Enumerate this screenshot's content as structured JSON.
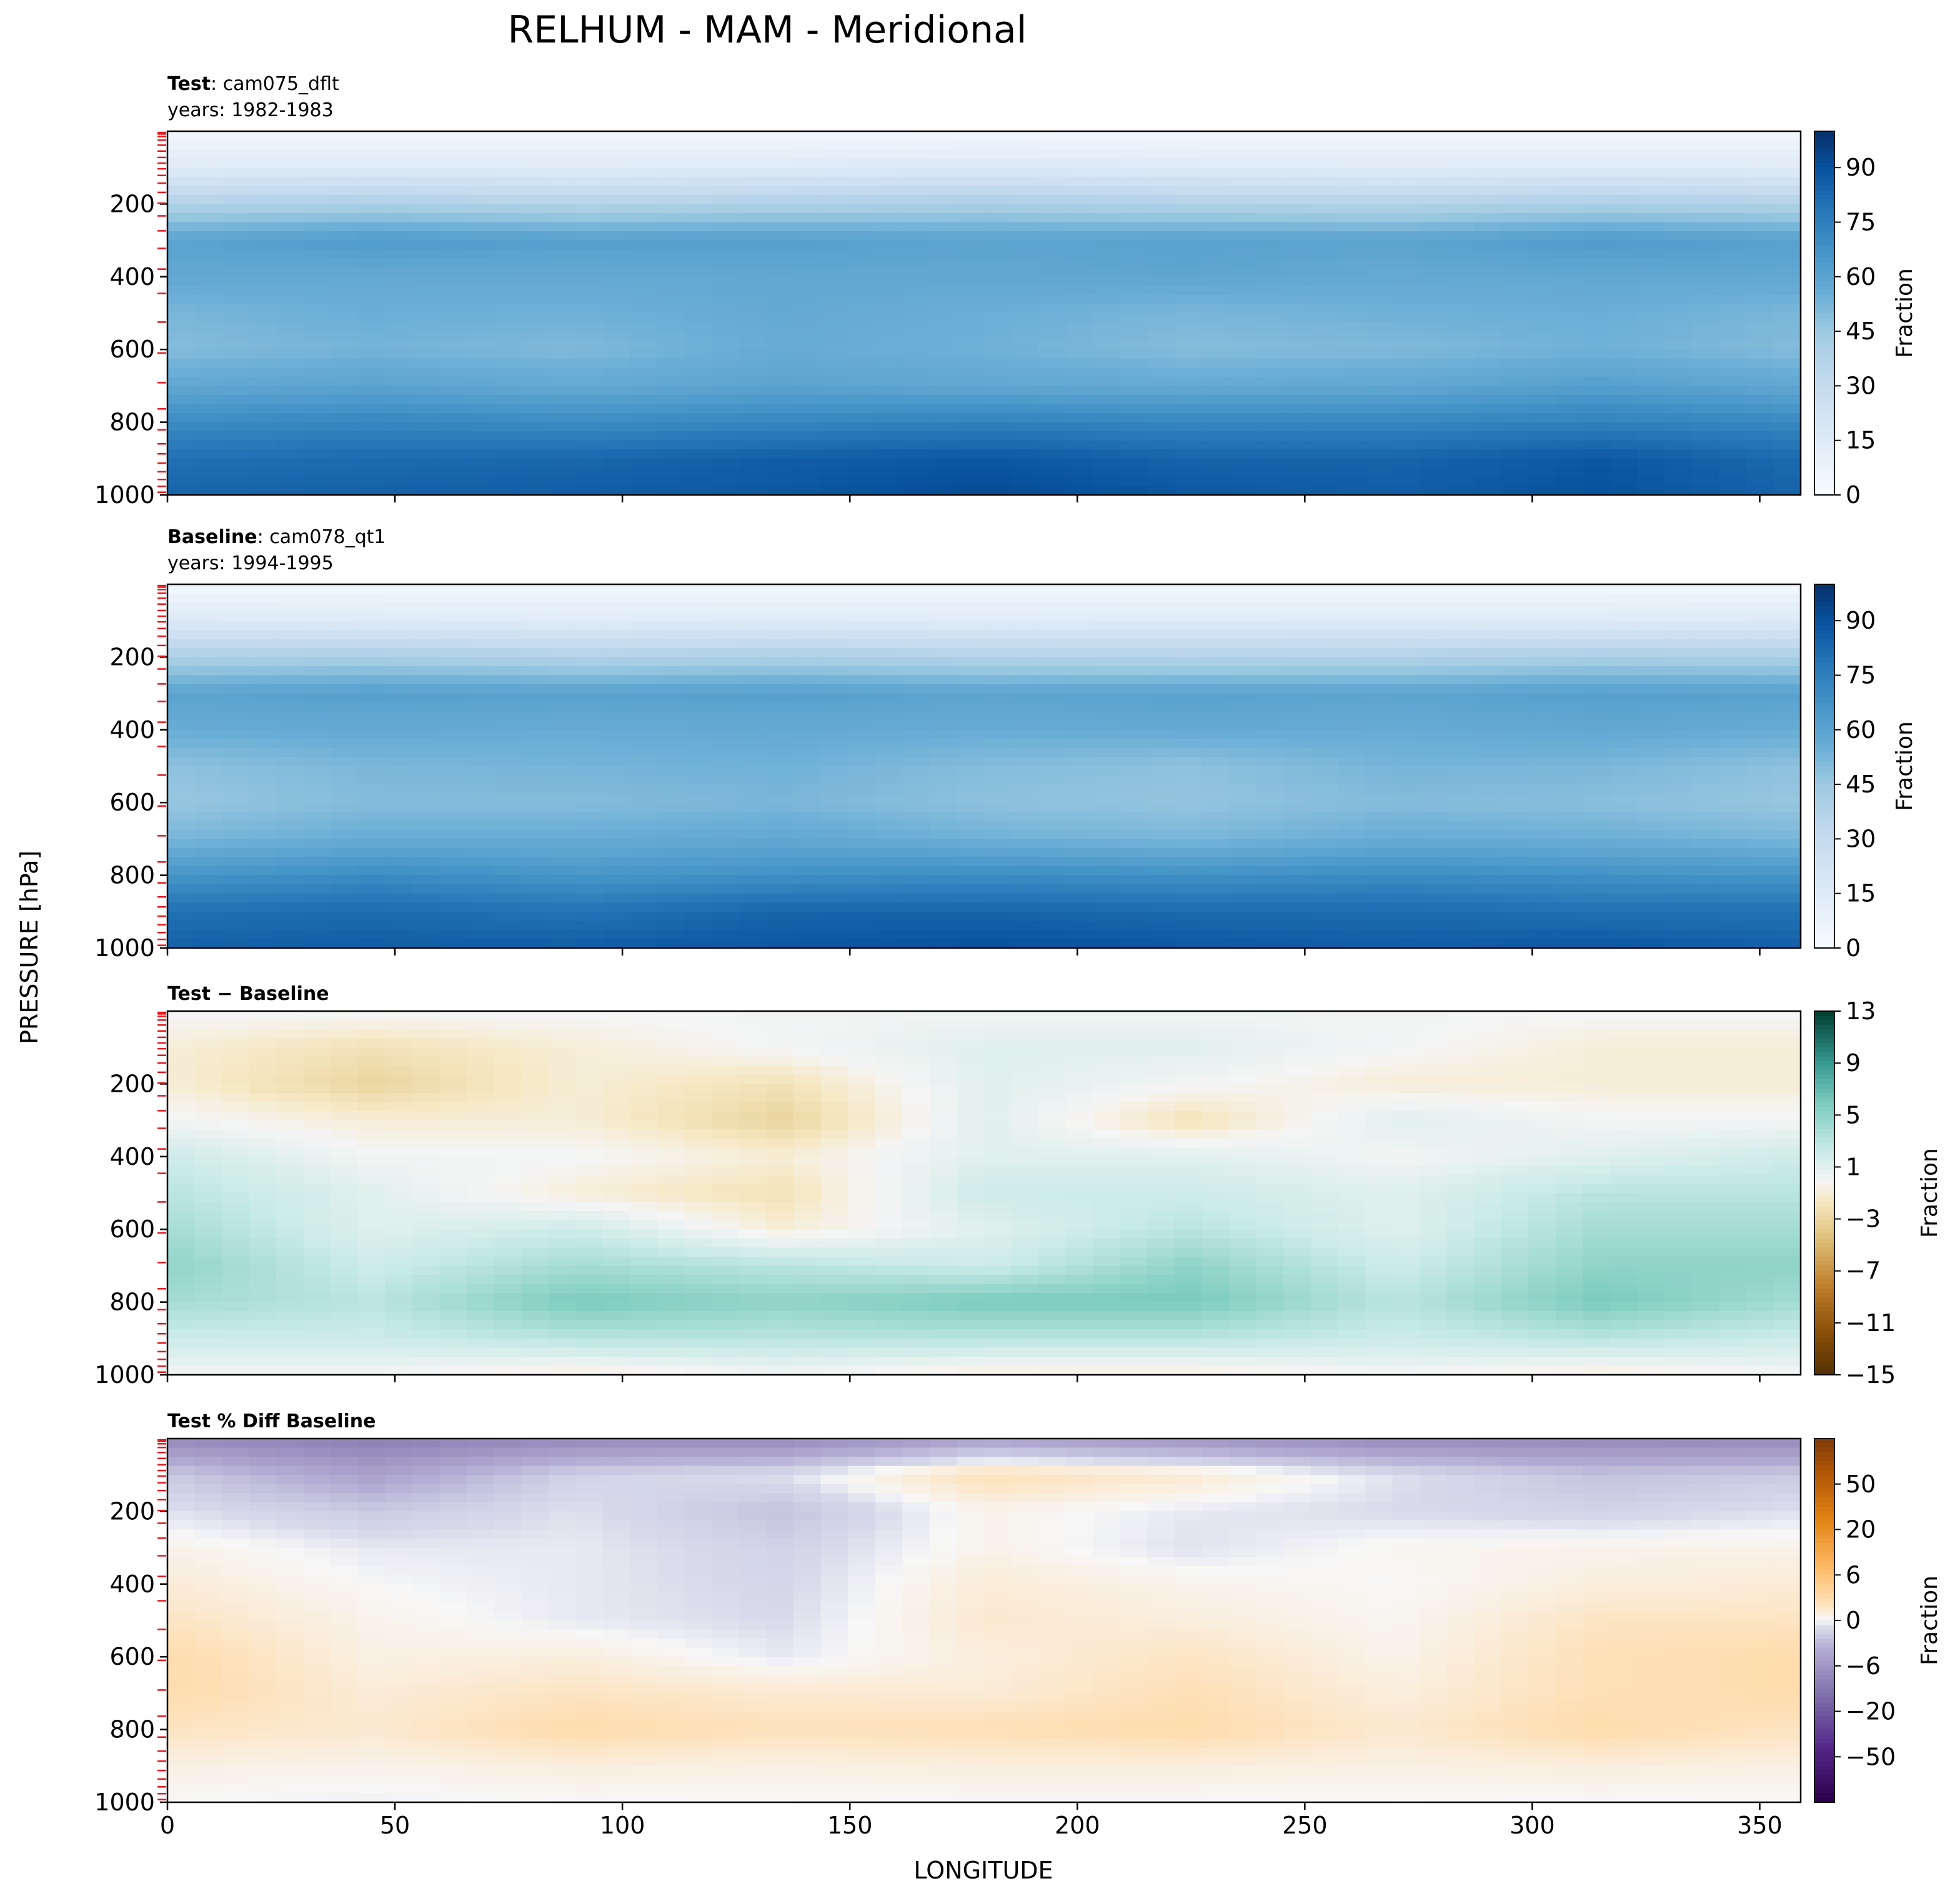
{
  "chart_data": {
    "type": "heatmap",
    "title": "RELHUM - MAM - Meridional",
    "shared_xlabel": "LONGITUDE",
    "shared_ylabel": "PRESSURE [hPa]",
    "xlim": [
      0,
      359
    ],
    "ylim": [
      1000,
      0
    ],
    "x_ticks": [
      "0",
      "50",
      "100",
      "150",
      "200",
      "250",
      "300",
      "350"
    ],
    "x_tick_values": [
      0,
      50,
      100,
      150,
      200,
      250,
      300,
      350
    ],
    "y_ticks": [
      "200",
      "400",
      "600",
      "800",
      "1000"
    ],
    "y_tick_values": [
      200,
      400,
      600,
      800,
      1000
    ],
    "level_ticks_hpa": [
      3.6,
      7.6,
      14.4,
      24.6,
      38.3,
      54.6,
      72.0,
      87.8,
      103.3,
      121.5,
      142.9,
      168.2,
      197.9,
      232.8,
      273.9,
      322.2,
      379.1,
      445.99,
      524.69,
      609.78,
      691.39,
      763.4,
      820.86,
      859.53,
      887.02,
      912.64,
      936.2,
      957.49,
      976.33,
      992.56
    ],
    "panels": [
      {
        "id": "test",
        "label_bold": "Test",
        "label_sep": ":",
        "case": "cam075_dflt",
        "years": "years: 1982-1983",
        "cmap": "Blues",
        "colorbar_label": "Fraction",
        "colorbar_ticks": [
          "0",
          "15",
          "30",
          "45",
          "60",
          "75",
          "90"
        ],
        "colorbar_tick_values": [
          0,
          15,
          30,
          45,
          60,
          75,
          90
        ],
        "vmin": 0,
        "vmax": 100,
        "field_lon": [
          0,
          45,
          90,
          135,
          180,
          225,
          270,
          315,
          359
        ],
        "field_plev": [
          0,
          100,
          200,
          300,
          400,
          500,
          600,
          700,
          800,
          900,
          1000
        ],
        "field_values": [
          [
            3,
            3,
            3,
            3,
            3,
            3,
            3,
            3,
            3
          ],
          [
            14,
            15,
            14,
            15,
            17,
            15,
            14,
            15,
            14
          ],
          [
            38,
            40,
            37,
            39,
            41,
            38,
            37,
            40,
            38
          ],
          [
            60,
            64,
            62,
            62,
            60,
            61,
            60,
            64,
            61
          ],
          [
            58,
            57,
            57,
            58,
            58,
            59,
            57,
            58,
            58
          ],
          [
            52,
            55,
            54,
            57,
            55,
            52,
            54,
            55,
            52
          ],
          [
            50,
            53,
            51,
            56,
            54,
            50,
            51,
            54,
            50
          ],
          [
            58,
            60,
            57,
            60,
            58,
            57,
            58,
            62,
            58
          ],
          [
            70,
            72,
            70,
            72,
            74,
            72,
            72,
            74,
            71
          ],
          [
            80,
            82,
            83,
            86,
            88,
            84,
            84,
            88,
            82
          ],
          [
            84,
            85,
            86,
            88,
            92,
            88,
            86,
            90,
            84
          ]
        ]
      },
      {
        "id": "baseline",
        "label_bold": "Baseline",
        "label_sep": ":",
        "case": "cam078_qt1",
        "years": "years: 1994-1995",
        "cmap": "Blues",
        "colorbar_label": "Fraction",
        "colorbar_ticks": [
          "0",
          "15",
          "30",
          "45",
          "60",
          "75",
          "90"
        ],
        "colorbar_tick_values": [
          0,
          15,
          30,
          45,
          60,
          75,
          90
        ],
        "vmin": 0,
        "vmax": 100,
        "field_lon": [
          0,
          45,
          90,
          135,
          180,
          225,
          270,
          315,
          359
        ],
        "field_plev": [
          0,
          100,
          200,
          300,
          400,
          500,
          600,
          700,
          800,
          900,
          1000
        ],
        "field_values": [
          [
            3,
            3,
            3,
            3,
            3,
            3,
            3,
            3,
            3
          ],
          [
            16,
            15,
            14,
            15,
            14,
            15,
            15,
            15,
            16
          ],
          [
            40,
            41,
            38,
            40,
            38,
            37,
            38,
            41,
            40
          ],
          [
            60,
            62,
            61,
            62,
            60,
            61,
            60,
            62,
            61
          ],
          [
            56,
            57,
            56,
            57,
            56,
            57,
            56,
            58,
            56
          ],
          [
            48,
            52,
            53,
            54,
            50,
            48,
            53,
            52,
            48
          ],
          [
            46,
            50,
            50,
            52,
            48,
            47,
            50,
            49,
            46
          ],
          [
            52,
            56,
            56,
            58,
            54,
            52,
            56,
            55,
            52
          ],
          [
            66,
            70,
            66,
            68,
            70,
            68,
            70,
            68,
            66
          ],
          [
            80,
            82,
            79,
            84,
            84,
            82,
            82,
            80,
            80
          ],
          [
            85,
            86,
            86,
            88,
            90,
            88,
            86,
            88,
            85
          ]
        ]
      },
      {
        "id": "diff",
        "label_bold": "Test − Baseline",
        "label_sep": "",
        "case": "",
        "years": "",
        "cmap": "BrBG",
        "colorbar_label": "Fraction",
        "colorbar_ticks": [
          "13",
          "9",
          "5",
          "1",
          "−3",
          "−7",
          "−11",
          "−15"
        ],
        "colorbar_tick_values": [
          13,
          9,
          5,
          1,
          -3,
          -7,
          -11,
          -15
        ],
        "vmin": -15,
        "vmax": 13,
        "field_lon": [
          0,
          45,
          90,
          135,
          180,
          225,
          270,
          315,
          359
        ],
        "field_plev": [
          0,
          100,
          200,
          300,
          400,
          500,
          600,
          700,
          800,
          900,
          1000
        ],
        "field_values": [
          [
            0,
            0,
            0,
            0,
            0,
            0,
            0,
            0,
            0
          ],
          [
            -1,
            -2,
            -1,
            0,
            1,
            1,
            0,
            -1,
            -1
          ],
          [
            -1,
            -3,
            -1,
            -2,
            1,
            0,
            -1,
            -1,
            -1
          ],
          [
            0,
            -1,
            -1,
            -3,
            1,
            -2,
            1,
            0,
            0
          ],
          [
            2,
            0,
            0,
            -1,
            1,
            1,
            0,
            1,
            2
          ],
          [
            3,
            1,
            -1,
            -2,
            2,
            2,
            1,
            3,
            3
          ],
          [
            4,
            1,
            2,
            -1,
            1,
            3,
            1,
            4,
            4
          ],
          [
            5,
            2,
            4,
            3,
            2,
            5,
            2,
            5,
            5
          ],
          [
            4,
            3,
            6,
            5,
            6,
            6,
            3,
            6,
            4
          ],
          [
            2,
            2,
            3,
            3,
            3,
            3,
            2,
            3,
            2
          ],
          [
            0,
            0,
            -1,
            0,
            -1,
            -1,
            0,
            -1,
            0
          ]
        ]
      },
      {
        "id": "pctdiff",
        "label_bold": "Test % Diff Baseline",
        "label_sep": "",
        "case": "",
        "years": "",
        "cmap": "PuOr",
        "colorbar_label": "Fraction",
        "colorbar_ticks": [
          "50",
          "20",
          "6",
          "0",
          "−6",
          "−20",
          "−50"
        ],
        "colorbar_tick_values": [
          50,
          20,
          6,
          0,
          -6,
          -20,
          -50
        ],
        "vmin": -100,
        "vmax": 100,
        "field_lon": [
          0,
          45,
          90,
          135,
          180,
          225,
          270,
          315,
          359
        ],
        "field_plev": [
          0,
          100,
          200,
          300,
          400,
          500,
          600,
          700,
          800,
          900,
          1000
        ],
        "field_values": [
          [
            -30,
            -35,
            -30,
            -30,
            -20,
            -25,
            -30,
            -30,
            -30
          ],
          [
            -8,
            -20,
            -6,
            -3,
            10,
            6,
            -3,
            -10,
            -8
          ],
          [
            -3,
            -8,
            -3,
            -10,
            2,
            -2,
            -4,
            -6,
            -3
          ],
          [
            2,
            -2,
            -2,
            -6,
            2,
            -3,
            1,
            2,
            2
          ],
          [
            5,
            0,
            -2,
            -5,
            5,
            2,
            0,
            4,
            5
          ],
          [
            8,
            2,
            -2,
            -4,
            6,
            4,
            1,
            8,
            8
          ],
          [
            12,
            3,
            4,
            -2,
            4,
            8,
            2,
            10,
            12
          ],
          [
            12,
            5,
            8,
            6,
            5,
            10,
            4,
            10,
            12
          ],
          [
            8,
            6,
            12,
            9,
            10,
            12,
            6,
            12,
            8
          ],
          [
            3,
            2,
            4,
            3,
            4,
            4,
            3,
            4,
            3
          ],
          [
            0,
            -1,
            0,
            0,
            0,
            0,
            0,
            0,
            0
          ]
        ]
      }
    ]
  }
}
